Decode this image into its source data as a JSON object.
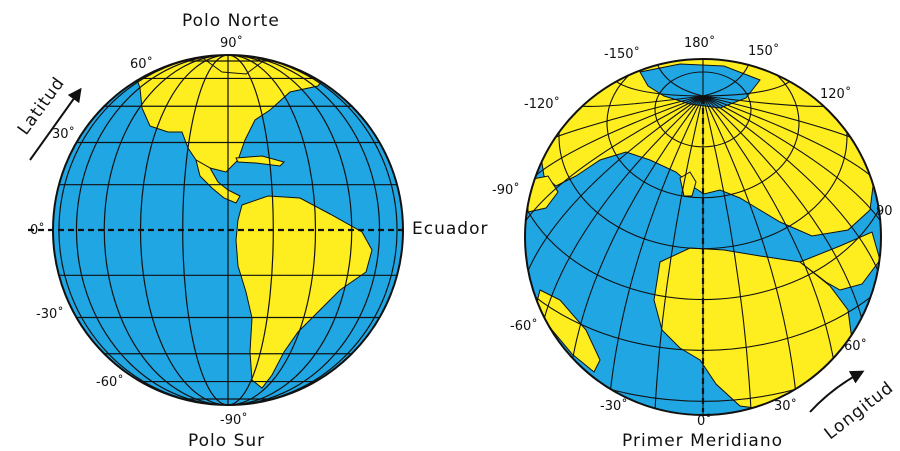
{
  "colors": {
    "ocean": "#1fa6e3",
    "land": "#ffee1f",
    "grid": "#111111"
  },
  "left_globe": {
    "north_pole": "Polo Norte",
    "south_pole": "Polo Sur",
    "equator": "Ecuador",
    "axis_word": "Latitud",
    "lat_labels": {
      "n90": "90˚",
      "n60": "60˚",
      "n30": "30˚",
      "eq": "0˚",
      "s30": "-30˚",
      "s60": "-60˚",
      "s90": "-90˚"
    }
  },
  "right_globe": {
    "prime_meridian": "Primer Meridiano",
    "axis_word": "Longitud",
    "lon_labels": {
      "w150": "-150˚",
      "top180": "180˚",
      "e150": "150˚",
      "w120": "-120˚",
      "e120": "120˚",
      "w90": "-90˚",
      "e90": "90",
      "w60": "-60˚",
      "e60": "60˚",
      "w30": "-30˚",
      "e30": "30˚",
      "zero": "0˚"
    }
  }
}
